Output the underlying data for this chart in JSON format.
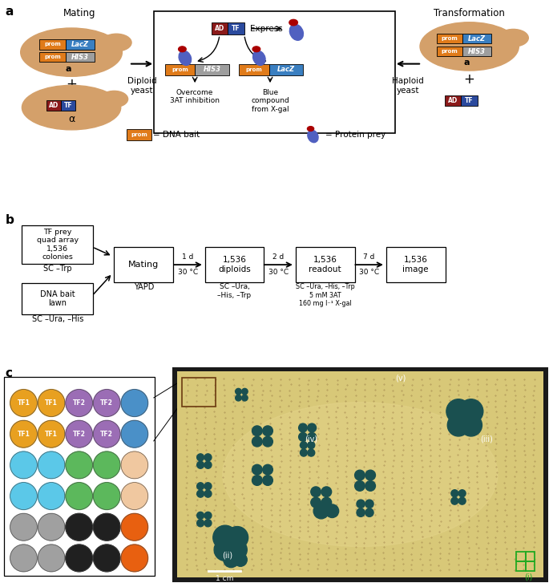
{
  "fig_width": 6.85,
  "fig_height": 7.27,
  "panel_a_label": "a",
  "panel_b_label": "b",
  "panel_c_label": "c",
  "mating_text": "Mating",
  "transformation_text": "Transformation",
  "express_text": "Express",
  "diploid_text": "Diploid\nyeast",
  "haploid_text": "Haploid\nyeast",
  "overcome_text": "Overcome\n3AT inhibition",
  "blue_text": "Blue\ncompound\nfrom X-gal",
  "legend_dna": "= DNA bait",
  "legend_protein": "= Protein prey",
  "prom_color": "#E07B1A",
  "lacz_color": "#3A7FC1",
  "his3_color": "#9E9E9E",
  "ad_color": "#8B1A1A",
  "tf_color": "#2B4A9E",
  "yeast_fill": "#D4A06A",
  "agar_color": "#D8C878",
  "agar_dark": "#C0B060",
  "colony_color": "#1A5050",
  "circle_colors_row1": [
    "#E8A020",
    "#E8A020",
    "#9B6DB5",
    "#9B6DB5",
    "#4A90C8"
  ],
  "circle_colors_row2": [
    "#E8A020",
    "#E8A020",
    "#9B6DB5",
    "#9B6DB5",
    "#4A90C8"
  ],
  "circle_colors_row3": [
    "#5BC8E8",
    "#5BC8E8",
    "#5CB85C",
    "#5CB85C",
    "#F0C8A0"
  ],
  "circle_colors_row4": [
    "#5BC8E8",
    "#5BC8E8",
    "#5CB85C",
    "#5CB85C",
    "#F0C8A0"
  ],
  "circle_colors_row5": [
    "#A0A0A0",
    "#A0A0A0",
    "#202020",
    "#202020",
    "#E86010"
  ],
  "circle_colors_row6": [
    "#A0A0A0",
    "#A0A0A0",
    "#202020",
    "#202020",
    "#E86010"
  ],
  "tf1_label": "TF1",
  "tf2_label": "TF2"
}
